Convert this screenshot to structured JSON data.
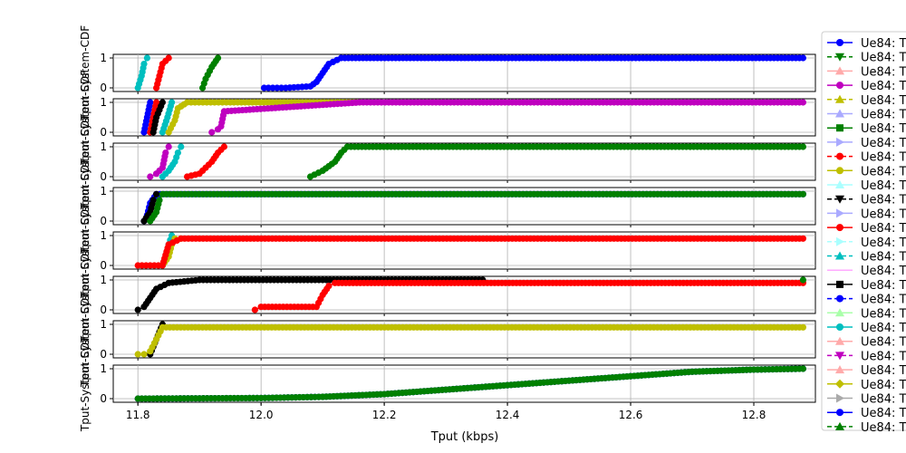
{
  "chart_data": {
    "type": "line",
    "xlabel": "Tput (kbps)",
    "x_ticks": [
      "11.8",
      "12.0",
      "12.2",
      "12.4",
      "12.6",
      "12.8"
    ],
    "xlim": [
      11.76,
      12.9
    ],
    "ylim": [
      0,
      1
    ],
    "y_ticks": [
      "0",
      "1"
    ],
    "grid": true,
    "legend_placement": "right, outside",
    "legend_entries": [
      {
        "label": "Ue84: T",
        "color": "#0000ff",
        "marker": "circle",
        "dash": "solid"
      },
      {
        "label": "Ue84: T",
        "color": "#008000",
        "marker": "triangle-down",
        "dash": "dashed"
      },
      {
        "label": "Ue84: T",
        "color": "#ffaaaa",
        "marker": "triangle-up",
        "dash": "solid"
      },
      {
        "label": "Ue84: T",
        "color": "#bf00bf",
        "marker": "circle",
        "dash": "solid"
      },
      {
        "label": "Ue84: T",
        "color": "#bfbf00",
        "marker": "triangle-up",
        "dash": "dashed"
      },
      {
        "label": "Ue84: T",
        "color": "#aaaaff",
        "marker": "triangle-up",
        "dash": "solid"
      },
      {
        "label": "Ue84: T",
        "color": "#008000",
        "marker": "square",
        "dash": "solid"
      },
      {
        "label": "Ue84: T",
        "color": "#aaaaff",
        "marker": "triangle-right",
        "dash": "solid"
      },
      {
        "label": "Ue84: T",
        "color": "#ff0000",
        "marker": "circle",
        "dash": "dashed"
      },
      {
        "label": "Ue84: T",
        "color": "#bfbf00",
        "marker": "circle",
        "dash": "solid"
      },
      {
        "label": "Ue84: T",
        "color": "#aaffff",
        "marker": "triangle-up",
        "dash": "solid"
      },
      {
        "label": "Ue84: T",
        "color": "#000000",
        "marker": "triangle-down",
        "dash": "dashed"
      },
      {
        "label": "Ue84: T",
        "color": "#aaaaff",
        "marker": "triangle-right",
        "dash": "solid"
      },
      {
        "label": "Ue84: T",
        "color": "#ff0000",
        "marker": "circle",
        "dash": "solid"
      },
      {
        "label": "Ue84: T",
        "color": "#aaffff",
        "marker": "triangle-right",
        "dash": "dashed"
      },
      {
        "label": "Ue84: T",
        "color": "#00bfbf",
        "marker": "triangle-up",
        "dash": "dashed"
      },
      {
        "label": "Ue84: T",
        "color": "#ffaaff",
        "marker": "none",
        "dash": "solid"
      },
      {
        "label": "Ue84: T",
        "color": "#000000",
        "marker": "square",
        "dash": "solid"
      },
      {
        "label": "Ue84: T",
        "color": "#0000ff",
        "marker": "circle",
        "dash": "dashed"
      },
      {
        "label": "Ue84: T",
        "color": "#aaffaa",
        "marker": "triangle-up",
        "dash": "solid"
      },
      {
        "label": "Ue84: T",
        "color": "#00bfbf",
        "marker": "circle",
        "dash": "solid"
      },
      {
        "label": "Ue84: T",
        "color": "#ffaaaa",
        "marker": "triangle-up",
        "dash": "solid"
      },
      {
        "label": "Ue84: T",
        "color": "#bf00bf",
        "marker": "triangle-down",
        "dash": "dashed"
      },
      {
        "label": "Ue84: T",
        "color": "#ffaaaa",
        "marker": "triangle-up",
        "dash": "solid"
      },
      {
        "label": "Ue84: T",
        "color": "#bfbf00",
        "marker": "diamond",
        "dash": "solid"
      },
      {
        "label": "Ue84: T",
        "color": "#aaaaaa",
        "marker": "triangle-right",
        "dash": "solid"
      },
      {
        "label": "Ue84: T",
        "color": "#0000ff",
        "marker": "circle",
        "dash": "solid"
      },
      {
        "label": "Ue84: T",
        "color": "#008000",
        "marker": "triangle-up",
        "dash": "dashed"
      }
    ],
    "subplots": [
      {
        "ylabel": "Tput-System-CDF",
        "series": [
          {
            "color": "#00bfbf",
            "x": [
              11.8,
              11.806,
              11.81,
              11.815
            ],
            "y": [
              0,
              0.4,
              0.8,
              1
            ]
          },
          {
            "color": "#ff0000",
            "x": [
              11.83,
              11.835,
              11.84,
              11.85
            ],
            "y": [
              0,
              0.4,
              0.8,
              1
            ]
          },
          {
            "color": "#008000",
            "x": [
              11.905,
              11.91,
              11.92,
              11.93
            ],
            "y": [
              0,
              0.3,
              0.7,
              1
            ]
          },
          {
            "color": "#0000ff",
            "x": [
              12.005,
              12.04,
              12.08,
              12.09,
              12.1,
              12.11,
              12.13,
              12.88
            ],
            "y": [
              0,
              0,
              0.05,
              0.2,
              0.5,
              0.8,
              1,
              1
            ]
          }
        ]
      },
      {
        "ylabel": "Tput-System-CDF",
        "series": [
          {
            "color": "#0000ff",
            "x": [
              11.81,
              11.815,
              11.82
            ],
            "y": [
              0,
              0.5,
              1
            ]
          },
          {
            "color": "#ff0000",
            "x": [
              11.82,
              11.825,
              11.83
            ],
            "y": [
              0,
              0.5,
              1
            ]
          },
          {
            "color": "#000000",
            "x": [
              11.825,
              11.83,
              11.84
            ],
            "y": [
              0,
              0.5,
              1
            ]
          },
          {
            "color": "#00bfbf",
            "x": [
              11.84,
              11.848,
              11.855
            ],
            "y": [
              0,
              0.5,
              1
            ]
          },
          {
            "color": "#bfbf00",
            "x": [
              11.85,
              11.86,
              11.865,
              11.88,
              11.95,
              12.16
            ],
            "y": [
              0,
              0.4,
              0.8,
              1,
              1,
              1
            ]
          },
          {
            "color": "#bf00bf",
            "x": [
              11.92,
              11.93,
              11.935,
              11.94,
              12.16,
              12.88
            ],
            "y": [
              0,
              0.1,
              0.2,
              0.7,
              1,
              1
            ]
          }
        ]
      },
      {
        "ylabel": "Tput-System-CDF",
        "series": [
          {
            "color": "#bf00bf",
            "x": [
              11.82,
              11.83,
              11.84,
              11.845,
              11.85
            ],
            "y": [
              0,
              0.1,
              0.3,
              0.8,
              1
            ]
          },
          {
            "color": "#00bfbf",
            "x": [
              11.84,
              11.85,
              11.86,
              11.865,
              11.87
            ],
            "y": [
              0,
              0.2,
              0.5,
              0.8,
              1
            ]
          },
          {
            "color": "#ff0000",
            "x": [
              11.88,
              11.9,
              11.92,
              11.93,
              11.94
            ],
            "y": [
              0,
              0.1,
              0.5,
              0.8,
              1
            ]
          },
          {
            "color": "#008000",
            "x": [
              12.08,
              12.1,
              12.12,
              12.13,
              12.14,
              12.88
            ],
            "y": [
              0,
              0.2,
              0.5,
              0.8,
              1,
              1
            ]
          }
        ]
      },
      {
        "ylabel": "Tput-System-CDF",
        "series": [
          {
            "color": "#0000ff",
            "x": [
              11.81,
              11.815,
              11.82,
              11.83,
              12.88
            ],
            "y": [
              0,
              0.2,
              0.6,
              0.9,
              0.9
            ]
          },
          {
            "color": "#000000",
            "x": [
              11.81,
              11.82,
              11.825,
              11.83
            ],
            "y": [
              0,
              0.3,
              0.7,
              0.9
            ]
          },
          {
            "color": "#008000",
            "x": [
              11.82,
              11.83,
              11.835,
              11.84,
              12.88
            ],
            "y": [
              0,
              0.3,
              0.7,
              0.9,
              0.9
            ]
          }
        ]
      },
      {
        "ylabel": "Tput-System-CDF",
        "series": [
          {
            "color": "#00bfbf",
            "x": [
              11.84,
              11.845,
              11.85,
              11.855
            ],
            "y": [
              0,
              0.3,
              0.7,
              1
            ]
          },
          {
            "color": "#bfbf00",
            "x": [
              11.84,
              11.85,
              11.855,
              11.86,
              11.87
            ],
            "y": [
              0,
              0.3,
              0.7,
              0.9,
              0.9
            ]
          },
          {
            "color": "#ff0000",
            "x": [
              11.8,
              11.84,
              11.85,
              11.87,
              11.9,
              12.88
            ],
            "y": [
              0,
              0,
              0.7,
              0.9,
              0.9,
              0.9
            ]
          }
        ]
      },
      {
        "ylabel": "Tput-System-CDF",
        "series": [
          {
            "color": "#000000",
            "x": [
              11.8,
              11.81,
              11.82,
              11.83,
              11.85,
              11.9,
              12.1,
              12.36
            ],
            "y": [
              0,
              0.1,
              0.4,
              0.7,
              0.9,
              1,
              1,
              1
            ]
          },
          {
            "color": "#ff0000",
            "x": [
              11.99,
              12.0,
              12.09,
              12.1,
              12.11,
              12.12,
              12.88
            ],
            "y": [
              0,
              0.1,
              0.1,
              0.5,
              0.8,
              0.9,
              0.9
            ]
          },
          {
            "color": "#008000",
            "x": [
              12.88
            ],
            "y": [
              1
            ]
          }
        ]
      },
      {
        "ylabel": "Tput-System-CDF",
        "series": [
          {
            "color": "#000000",
            "x": [
              11.82,
              11.83,
              11.84
            ],
            "y": [
              0,
              0.5,
              1
            ]
          },
          {
            "color": "#bfbf00",
            "x": [
              11.8,
              11.81,
              11.82,
              11.83,
              11.84,
              12.88
            ],
            "y": [
              0,
              0,
              0.1,
              0.5,
              0.9,
              0.9
            ]
          }
        ]
      },
      {
        "ylabel": "Tput-System-CDF",
        "series": [
          {
            "color": "#0000ff",
            "x": [
              11.8,
              11.9,
              12.0,
              12.1,
              12.2,
              12.3,
              12.4,
              12.5,
              12.6,
              12.7,
              12.8,
              12.88
            ],
            "y": [
              0,
              0.01,
              0.02,
              0.06,
              0.15,
              0.3,
              0.45,
              0.6,
              0.75,
              0.9,
              0.97,
              1
            ]
          },
          {
            "color": "#008000",
            "x": [
              11.8,
              11.9,
              12.0,
              12.1,
              12.2,
              12.3,
              12.4,
              12.5,
              12.6,
              12.7,
              12.8,
              12.88
            ],
            "y": [
              0,
              0.01,
              0.02,
              0.06,
              0.15,
              0.3,
              0.45,
              0.6,
              0.75,
              0.9,
              0.97,
              1
            ]
          }
        ]
      }
    ]
  }
}
